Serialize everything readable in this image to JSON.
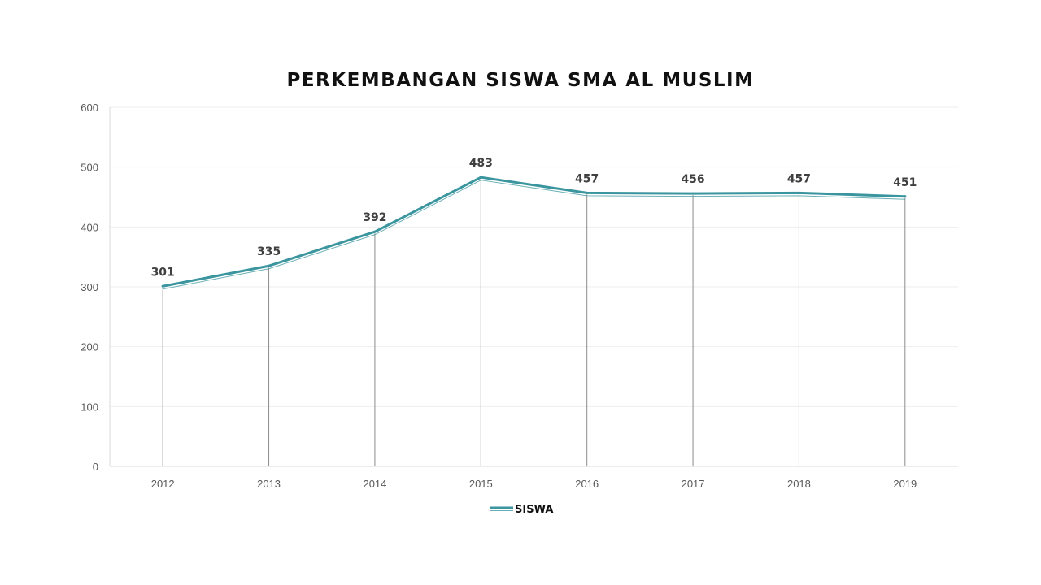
{
  "chart_data": {
    "type": "line",
    "title": "PERKEMBANGAN SISWA SMA AL MUSLIM",
    "xlabel": "",
    "ylabel": "",
    "categories": [
      "2012",
      "2013",
      "2014",
      "2015",
      "2016",
      "2017",
      "2018",
      "2019"
    ],
    "series": [
      {
        "name": "SISWA",
        "values": [
          301,
          335,
          392,
          483,
          457,
          456,
          457,
          451
        ],
        "labels": [
          "301",
          "335",
          "392",
          "483",
          "457",
          "456",
          "457",
          "451"
        ]
      }
    ],
    "ylim": [
      0,
      600
    ],
    "yticks": [
      "0",
      "100",
      "200",
      "300",
      "400",
      "500",
      "600"
    ],
    "grid": true,
    "drop_lines": true,
    "legend": "bottom-center",
    "colors": {
      "line": "#3a959e",
      "grid": "#eeeeee",
      "axis": "#d9d9d9",
      "drop": "#8c8c8c"
    }
  }
}
